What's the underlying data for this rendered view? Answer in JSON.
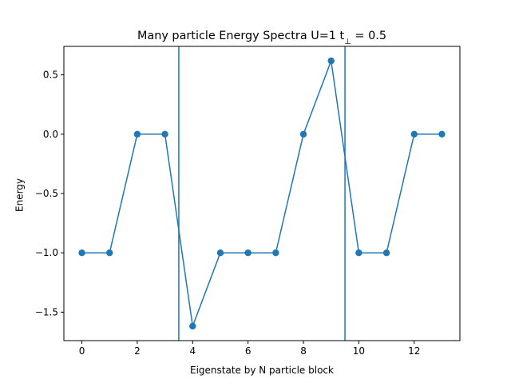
{
  "chart_data": {
    "type": "line",
    "title": "Many particle Energy Spectra U=1 t",
    "title_subscript": "⊥",
    "title_suffix": " = 0.5",
    "xlabel": "Eigenstate by N particle block",
    "ylabel": "Energy",
    "xlim": [
      -0.65,
      13.65
    ],
    "ylim": [
      -1.74,
      0.74
    ],
    "xticks": [
      0,
      2,
      4,
      6,
      8,
      10,
      12
    ],
    "xtick_labels": [
      "0",
      "2",
      "4",
      "6",
      "8",
      "10",
      "12"
    ],
    "yticks": [
      0.5,
      0.0,
      -0.5,
      -1.0,
      -1.5
    ],
    "ytick_labels": [
      "0.5",
      "0.0",
      "−0.5",
      "−1.0",
      "−1.5"
    ],
    "grid": false,
    "series": [
      {
        "x": [
          0,
          1,
          2,
          3,
          4,
          5,
          6,
          7,
          8,
          9,
          10,
          11,
          12,
          13
        ],
        "values": [
          -1.0,
          -1.0,
          0.0,
          0.0,
          -1.618,
          -1.0,
          -1.0,
          -1.0,
          0.0,
          0.618,
          -1.0,
          -1.0,
          0.0,
          0.0
        ],
        "color": "#1f77b4",
        "marker": "circle"
      }
    ],
    "vlines": [
      {
        "x": 3.5,
        "color": "#1f77b4"
      },
      {
        "x": 9.5,
        "color": "#1f77b4"
      }
    ]
  }
}
